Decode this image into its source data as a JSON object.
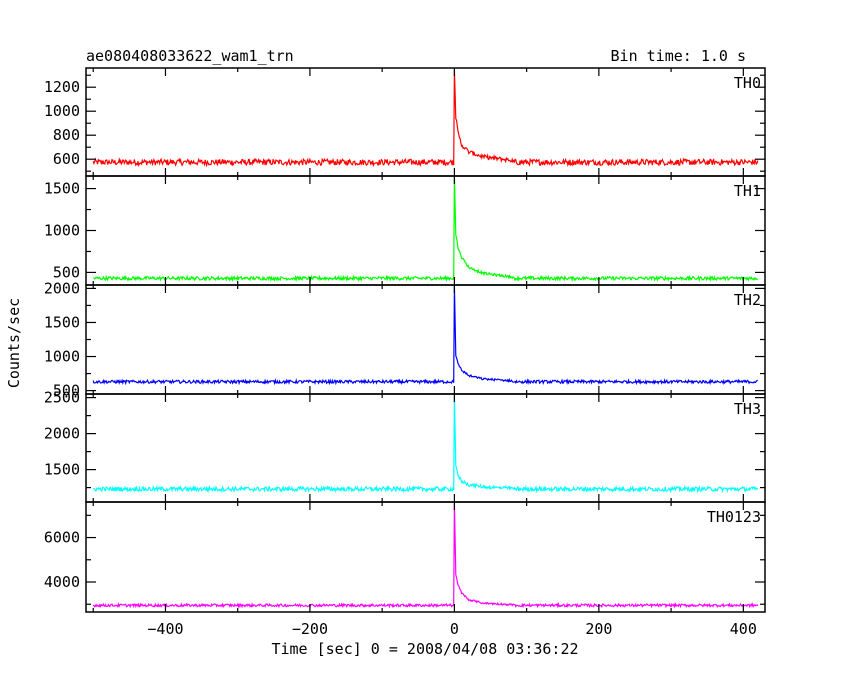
{
  "header": {
    "title": "ae080408033622_wam1_trn",
    "bin_time": "Bin time: 1.0 s"
  },
  "axes": {
    "ylabel": "Counts/sec",
    "xlabel": "Time [sec] 0 = 2008/04/08 03:36:22"
  },
  "chart_data": {
    "type": "line",
    "title": "ae080408033622_wam1_trn",
    "xlabel": "Time [sec] 0 = 2008/04/08 03:36:22",
    "ylabel": "Counts/sec",
    "xlim": [
      -510,
      430
    ],
    "x_ticks": [
      -400,
      -200,
      0,
      200,
      400
    ],
    "x_tick_labels": [
      "−400",
      "−200",
      "0",
      "200",
      "400"
    ],
    "data_x_range": [
      -500,
      420
    ],
    "panels": [
      {
        "name": "TH0",
        "color": "#ff0000",
        "ylim": [
          460,
          1360
        ],
        "y_ticks": [
          600,
          800,
          1000,
          1200
        ],
        "baseline": 575,
        "noise": 25,
        "peak": 1360,
        "decay": [
          {
            "x": 0,
            "y": 1360
          },
          {
            "x": 2,
            "y": 950
          },
          {
            "x": 5,
            "y": 820
          },
          {
            "x": 10,
            "y": 720
          },
          {
            "x": 20,
            "y": 660
          },
          {
            "x": 40,
            "y": 620
          },
          {
            "x": 80,
            "y": 590
          }
        ]
      },
      {
        "name": "TH1",
        "color": "#00ff00",
        "ylim": [
          350,
          1650
        ],
        "y_ticks": [
          500,
          1000,
          1500
        ],
        "baseline": 430,
        "noise": 20,
        "peak": 1650,
        "decay": [
          {
            "x": 0,
            "y": 1650
          },
          {
            "x": 2,
            "y": 950
          },
          {
            "x": 5,
            "y": 800
          },
          {
            "x": 10,
            "y": 680
          },
          {
            "x": 20,
            "y": 560
          },
          {
            "x": 40,
            "y": 490
          },
          {
            "x": 80,
            "y": 445
          }
        ]
      },
      {
        "name": "TH2",
        "color": "#0000ff",
        "ylim": [
          450,
          2050
        ],
        "y_ticks": [
          500,
          1000,
          1500,
          2000
        ],
        "baseline": 630,
        "noise": 22,
        "peak": 2050,
        "decay": [
          {
            "x": 0,
            "y": 2050
          },
          {
            "x": 2,
            "y": 1000
          },
          {
            "x": 5,
            "y": 900
          },
          {
            "x": 10,
            "y": 800
          },
          {
            "x": 20,
            "y": 720
          },
          {
            "x": 40,
            "y": 670
          },
          {
            "x": 80,
            "y": 645
          }
        ]
      },
      {
        "name": "TH3",
        "color": "#00ffff",
        "ylim": [
          1050,
          2550
        ],
        "y_ticks": [
          1500,
          2000,
          2500
        ],
        "baseline": 1230,
        "noise": 30,
        "peak": 2550,
        "decay": [
          {
            "x": 0,
            "y": 2550
          },
          {
            "x": 2,
            "y": 1550
          },
          {
            "x": 5,
            "y": 1420
          },
          {
            "x": 10,
            "y": 1340
          },
          {
            "x": 20,
            "y": 1290
          },
          {
            "x": 40,
            "y": 1260
          },
          {
            "x": 80,
            "y": 1240
          }
        ]
      },
      {
        "name": "TH0123",
        "color": "#ff00ff",
        "ylim": [
          2650,
          7600
        ],
        "y_ticks": [
          4000,
          6000
        ],
        "baseline": 2950,
        "noise": 60,
        "peak": 7600,
        "decay": [
          {
            "x": 0,
            "y": 7600
          },
          {
            "x": 2,
            "y": 4300
          },
          {
            "x": 5,
            "y": 3900
          },
          {
            "x": 10,
            "y": 3500
          },
          {
            "x": 20,
            "y": 3200
          },
          {
            "x": 40,
            "y": 3050
          },
          {
            "x": 80,
            "y": 2980
          }
        ]
      }
    ]
  }
}
